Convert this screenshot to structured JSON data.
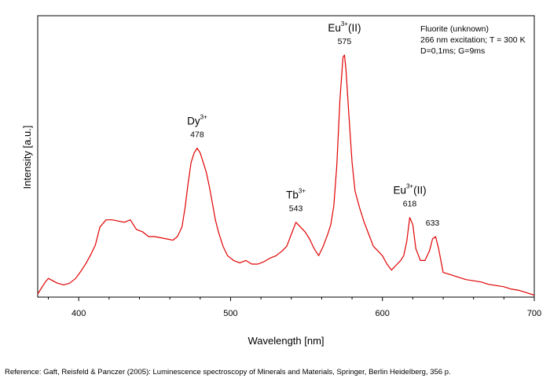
{
  "chart_data": {
    "type": "line",
    "title": "",
    "xlabel": "Wavelength [nm]",
    "ylabel": "Intensity [a.u.]",
    "xlim": [
      373,
      700
    ],
    "ylim": [
      0,
      100
    ],
    "x_ticks": [
      400,
      500,
      600,
      700
    ],
    "y_ticks_labeled": false,
    "grid": false,
    "legend": "none",
    "info_lines": [
      "Fluorite (unknown)",
      "266 nm excitation; T = 300 K",
      "D=0,1ms; G=9ms"
    ],
    "series": [
      {
        "color": "#e00000",
        "x": [
          373,
          376,
          378,
          380,
          383,
          386,
          390,
          394,
          398,
          402,
          405,
          408,
          411,
          414,
          418,
          422,
          426,
          430,
          434,
          438,
          442,
          446,
          450,
          454,
          458,
          462,
          465,
          468,
          470,
          472,
          474,
          476,
          478,
          480,
          482,
          484,
          486,
          488,
          490,
          492,
          495,
          498,
          502,
          506,
          510,
          514,
          518,
          522,
          526,
          530,
          534,
          537,
          540,
          543,
          546,
          549,
          552,
          555,
          558,
          561,
          564,
          566,
          568,
          570,
          572,
          574,
          575,
          576,
          578,
          580,
          582,
          585,
          588,
          591,
          594,
          597,
          600,
          603,
          606,
          609,
          612,
          614,
          616,
          618,
          620,
          622,
          625,
          628,
          631,
          633,
          635,
          637,
          640,
          645,
          650,
          655,
          660,
          665,
          670,
          675,
          680,
          685,
          690,
          695,
          700
        ],
        "y": [
          1,
          4,
          6,
          7.5,
          6.5,
          5.5,
          4.8,
          5.5,
          7.5,
          11,
          14,
          17.5,
          21.5,
          29,
          32,
          32,
          31.5,
          31,
          32,
          28,
          27,
          25,
          25,
          24.5,
          24,
          23.5,
          25,
          29,
          37,
          47,
          56,
          60,
          62,
          60,
          56,
          52,
          46,
          39,
          32,
          27,
          21,
          17,
          15,
          14,
          15,
          13.5,
          13.5,
          14.5,
          16,
          17,
          19,
          21,
          26,
          31,
          29,
          27,
          24,
          20,
          17,
          21,
          26,
          30,
          38,
          55,
          82,
          100,
          101,
          95,
          75,
          56,
          44,
          37,
          31,
          26,
          21,
          19,
          17,
          13.5,
          11,
          13,
          15,
          17,
          23,
          33,
          30,
          20,
          15,
          15,
          19,
          24,
          25,
          20,
          10,
          9,
          8,
          7,
          6.5,
          6,
          5,
          4.5,
          4,
          3,
          2.5,
          1.5,
          0.5
        ]
      }
    ],
    "annotations": [
      {
        "label": "Dy",
        "sup": "3+",
        "wavelength": "478",
        "x": 478,
        "y": 64
      },
      {
        "label": "Tb",
        "sup": "3+",
        "wavelength": "543",
        "x": 543,
        "y": 33
      },
      {
        "label": "Eu",
        "sup": "3+",
        "suffix": "(II)",
        "wavelength": "575",
        "x": 575,
        "y": 103
      },
      {
        "label": "Eu",
        "sup": "3+",
        "suffix": "(II)",
        "wavelength": "618",
        "x": 618,
        "y": 35
      },
      {
        "label": "",
        "sup": "",
        "wavelength": "633",
        "x": 633,
        "y": 27
      }
    ]
  },
  "reference": "Reference: Gaft, Reisfeld & Panczer (2005): Luminescence spectroscopy of Minerals and Materials, Springer, Berlin Heidelberg, 356 p."
}
